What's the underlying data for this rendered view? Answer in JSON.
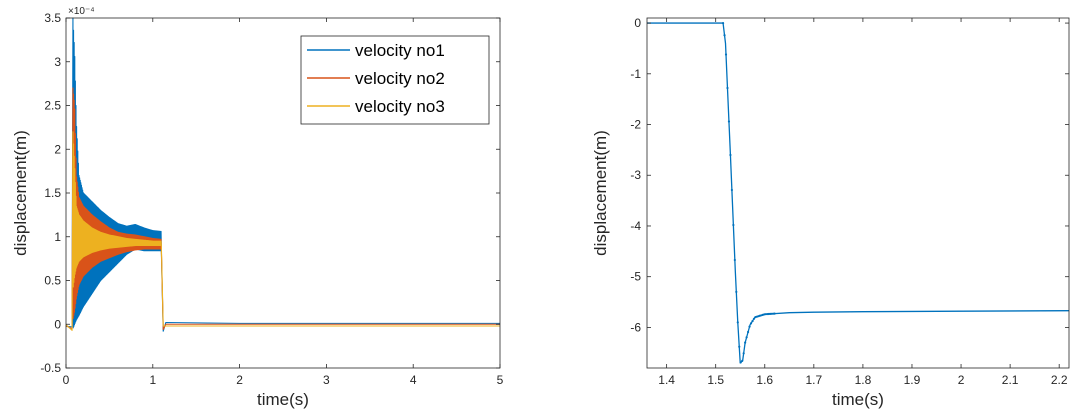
{
  "colors": {
    "series1": "#0072BD",
    "series2": "#D95319",
    "series3": "#EDB120",
    "axis": "#262626"
  },
  "chart_data": [
    {
      "type": "line",
      "xlabel": "time(s)",
      "ylabel": "displacement(m)",
      "exponent_label": "×10⁻⁴",
      "xlim": [
        0,
        5
      ],
      "ylim": [
        -0.5,
        3.5
      ],
      "xticks": [
        "0",
        "1",
        "2",
        "3",
        "4",
        "5"
      ],
      "yticks": [
        "-0.5",
        "0",
        "0.5",
        "1",
        "1.5",
        "2",
        "2.5",
        "3",
        "3.5"
      ],
      "legend_position": "top-right",
      "grid": false,
      "series": [
        {
          "name": "velocity no1",
          "color": "#0072BD",
          "x": [
            0.08,
            0.1,
            0.12,
            0.15,
            0.2,
            0.3,
            0.4,
            0.5,
            0.6,
            0.7,
            0.8,
            0.9,
            1.0,
            1.1
          ],
          "upper": [
            3.5,
            3.1,
            2.3,
            1.7,
            1.5,
            1.4,
            1.3,
            1.22,
            1.15,
            1.12,
            1.14,
            1.1,
            1.07,
            1.06
          ],
          "lower": [
            -0.05,
            0.0,
            0.05,
            0.1,
            0.2,
            0.35,
            0.5,
            0.6,
            0.7,
            0.8,
            0.86,
            0.84,
            0.84,
            0.84
          ],
          "after_x": [
            1.12,
            1.15,
            2,
            3,
            4,
            5
          ],
          "after_y": [
            -0.08,
            0.02,
            0.01,
            0.01,
            0.01,
            0.01
          ]
        },
        {
          "name": "velocity no2",
          "color": "#D95319",
          "x": [
            0.08,
            0.1,
            0.12,
            0.15,
            0.2,
            0.3,
            0.4,
            0.5,
            0.6,
            0.7,
            0.8,
            0.9,
            1.0,
            1.1
          ],
          "upper": [
            2.7,
            2.5,
            1.7,
            1.45,
            1.35,
            1.25,
            1.17,
            1.1,
            1.05,
            1.03,
            1.02,
            1.0,
            0.98,
            0.97
          ],
          "lower": [
            0.05,
            0.15,
            0.3,
            0.45,
            0.55,
            0.65,
            0.72,
            0.76,
            0.8,
            0.83,
            0.85,
            0.86,
            0.86,
            0.86
          ],
          "after_x": [
            1.12,
            1.15,
            2,
            3,
            4,
            5
          ],
          "after_y": [
            -0.06,
            0.0,
            0.0,
            0.0,
            0.0,
            0.0
          ]
        },
        {
          "name": "velocity no3",
          "color": "#EDB120",
          "x": [
            0.08,
            0.1,
            0.12,
            0.15,
            0.2,
            0.3,
            0.4,
            0.5,
            0.6,
            0.7,
            0.8,
            0.9,
            1.0,
            1.1
          ],
          "upper": [
            2.2,
            1.8,
            1.35,
            1.25,
            1.18,
            1.1,
            1.05,
            1.02,
            1.0,
            0.98,
            0.97,
            0.96,
            0.95,
            0.95
          ],
          "lower": [
            0.4,
            0.55,
            0.65,
            0.72,
            0.77,
            0.82,
            0.85,
            0.87,
            0.88,
            0.89,
            0.9,
            0.9,
            0.9,
            0.9
          ],
          "after_x": [
            1.12,
            1.15,
            2,
            3,
            4,
            5
          ],
          "after_y": [
            -0.02,
            -0.02,
            -0.02,
            -0.02,
            -0.02,
            -0.02
          ]
        }
      ]
    },
    {
      "type": "line",
      "xlabel": "time(s)",
      "ylabel": "displacement(m)",
      "xlim": [
        1.36,
        2.22
      ],
      "ylim": [
        -6.8,
        0.1
      ],
      "xticks": [
        "1.4",
        "1.5",
        "1.6",
        "1.7",
        "1.8",
        "1.9",
        "2",
        "2.1",
        "2.2"
      ],
      "yticks": [
        "-6",
        "-5",
        "-4",
        "-3",
        "-2",
        "-1",
        "0"
      ],
      "grid": false,
      "series": [
        {
          "color": "#0072BD",
          "x": [
            1.36,
            1.4,
            1.45,
            1.5,
            1.515,
            1.52,
            1.53,
            1.54,
            1.545,
            1.55,
            1.555,
            1.56,
            1.57,
            1.58,
            1.6,
            1.65,
            1.7,
            1.8,
            2.0,
            2.22
          ],
          "y": [
            0.0,
            0.0,
            0.0,
            0.0,
            0.0,
            -0.4,
            -2.6,
            -4.9,
            -5.9,
            -6.7,
            -6.65,
            -6.3,
            -5.95,
            -5.8,
            -5.74,
            -5.71,
            -5.7,
            -5.69,
            -5.68,
            -5.67
          ]
        }
      ]
    }
  ]
}
